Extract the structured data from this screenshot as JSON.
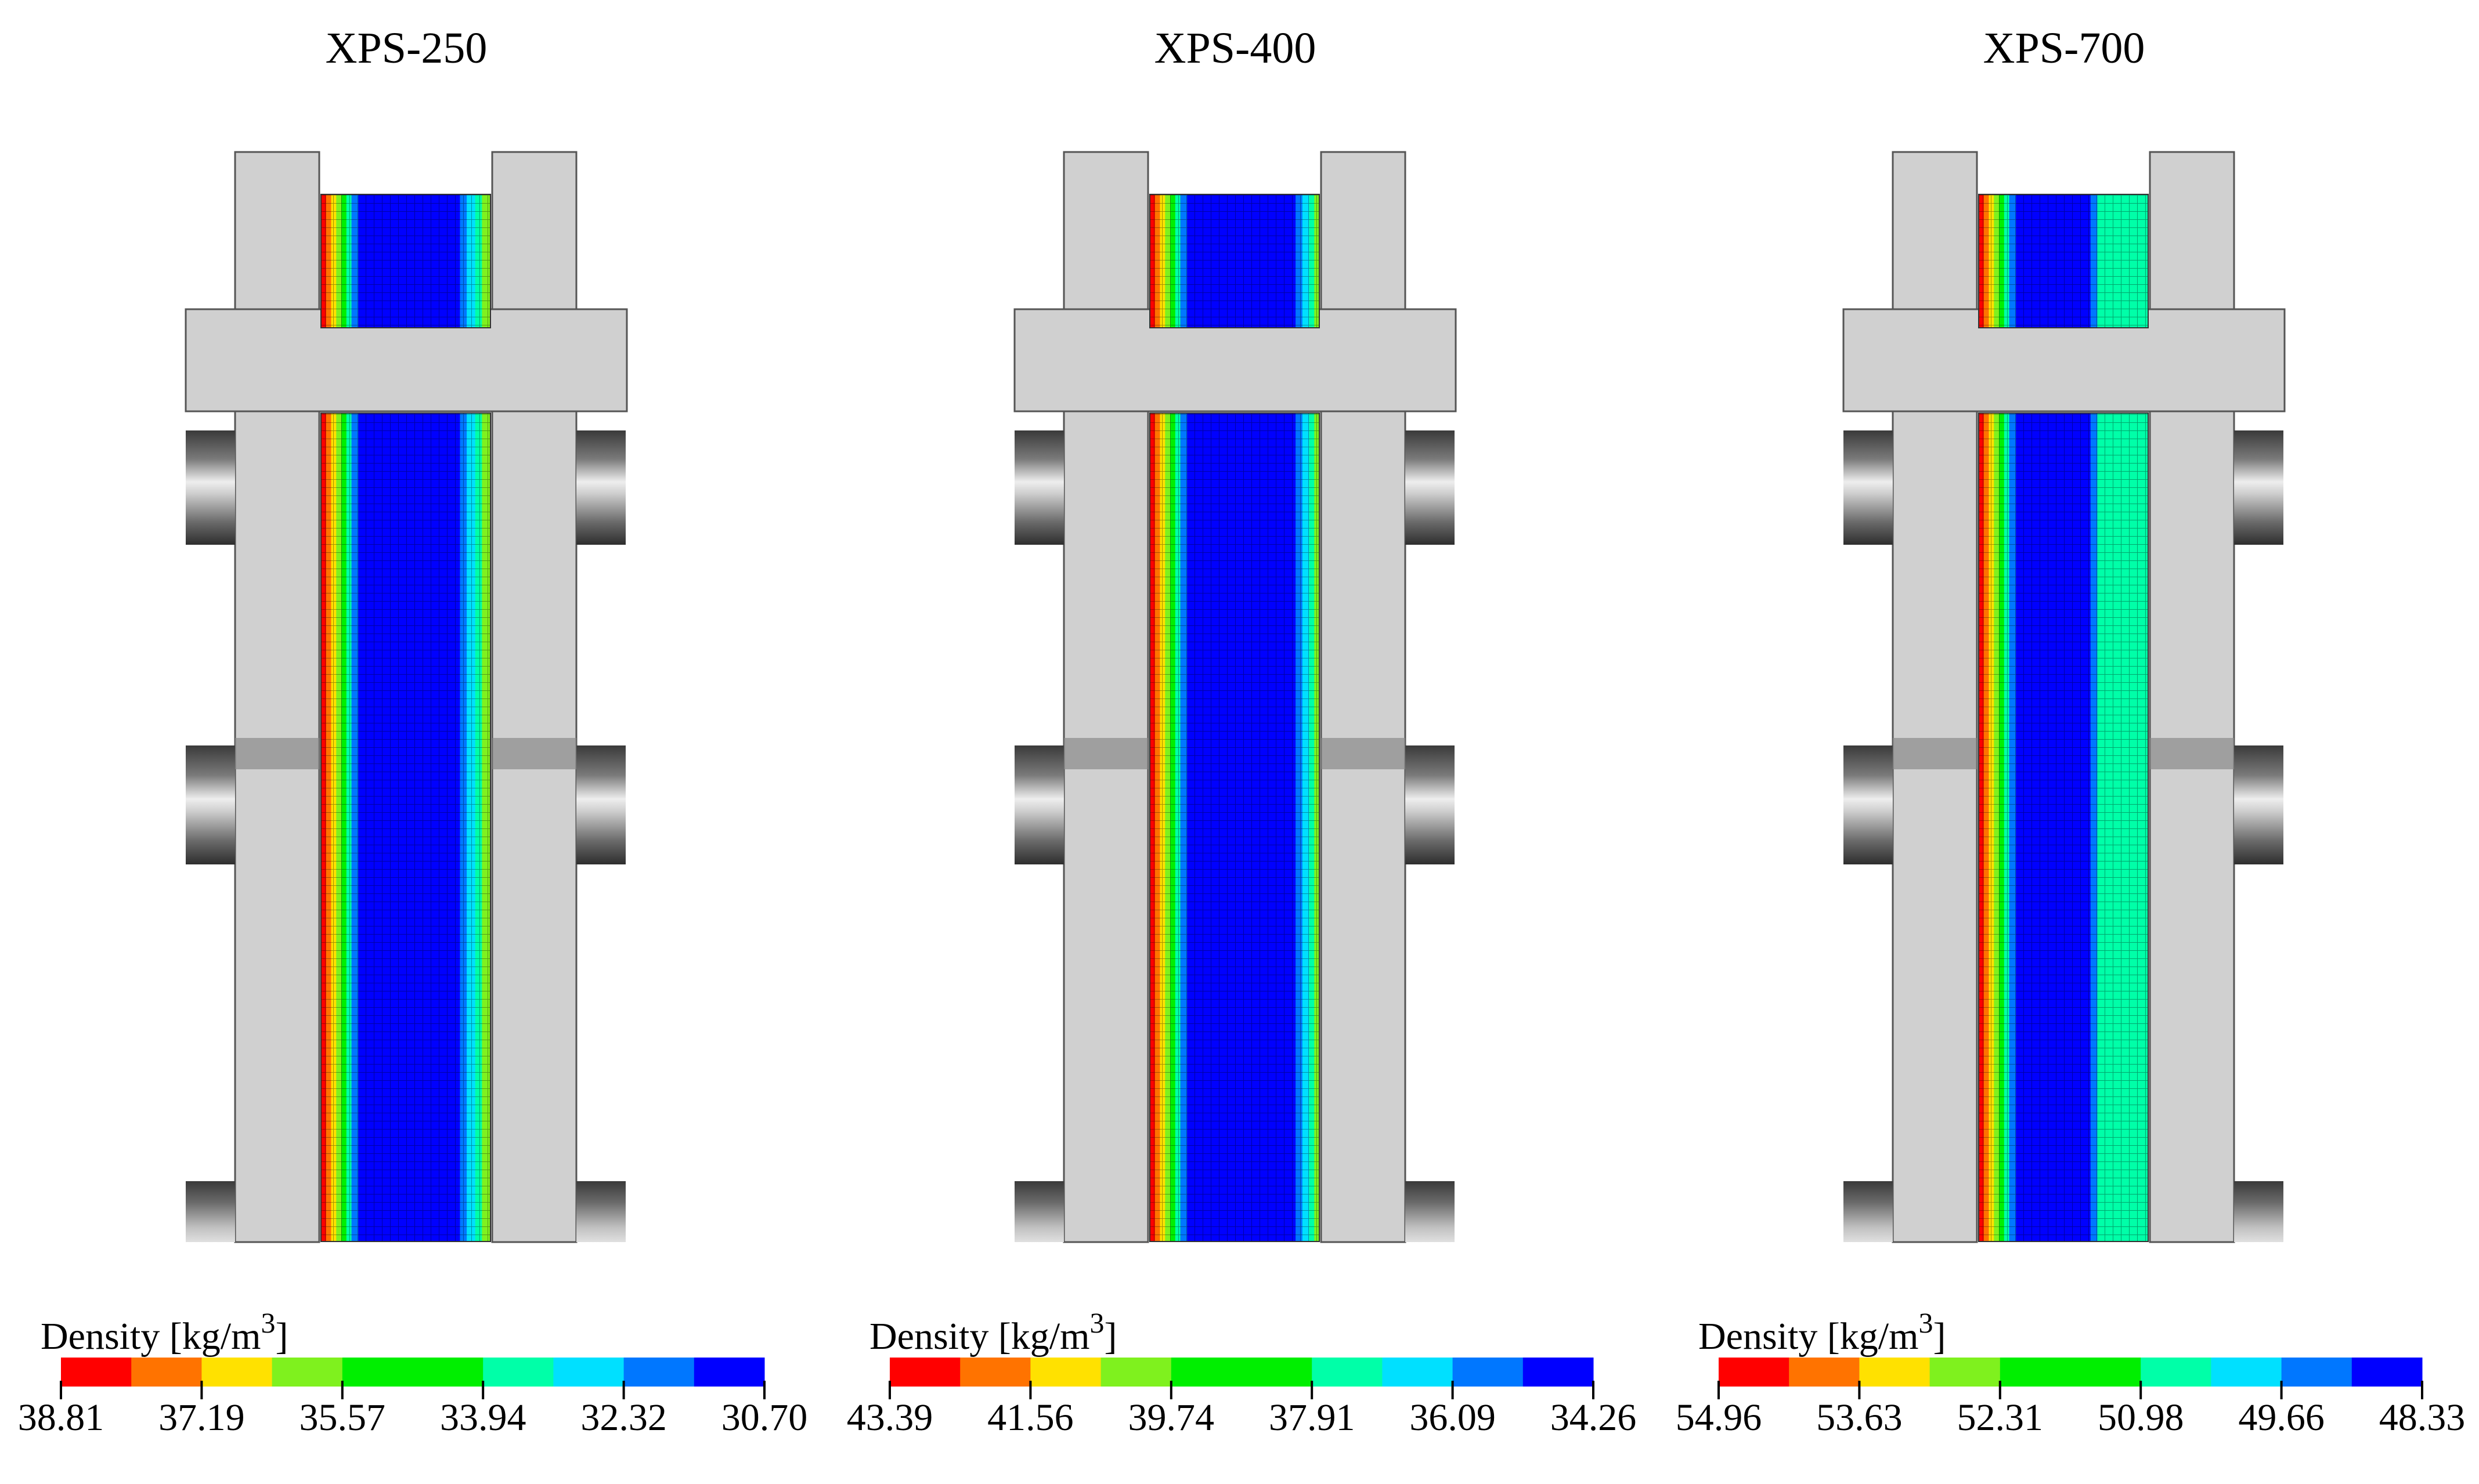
{
  "panels": [
    {
      "title": "XPS-250",
      "legend_label": "Density [kg/m",
      "legend_superscript": "3",
      "legend_label_close": "]",
      "ticks": [
        "38.81",
        "37.19",
        "35.57",
        "33.94",
        "32.32",
        "30.70"
      ],
      "profile": "xps250"
    },
    {
      "title": "XPS-400",
      "legend_label": "Density [kg/m",
      "legend_superscript": "3",
      "legend_label_close": "]",
      "ticks": [
        "43.39",
        "41.56",
        "39.74",
        "37.91",
        "36.09",
        "34.26"
      ],
      "profile": "xps400"
    },
    {
      "title": "XPS-700",
      "legend_label": "Density [kg/m",
      "legend_superscript": "3",
      "legend_label_close": "]",
      "ticks": [
        "54.96",
        "53.63",
        "52.31",
        "50.98",
        "49.66",
        "48.33"
      ],
      "profile": "xps700"
    }
  ],
  "colormap": [
    "#ff0000",
    "#ff7300",
    "#ffe100",
    "#7ff11e",
    "#00ef00",
    "#00ef00",
    "#00ffa8",
    "#00e0ff",
    "#0077ff",
    "#0000ff"
  ],
  "colors": {
    "fixture_gray": "#d0d0d0",
    "outline": "#555555",
    "dark_block": "#4a4a4a",
    "mesh_blue": "#0f2bd6"
  }
}
